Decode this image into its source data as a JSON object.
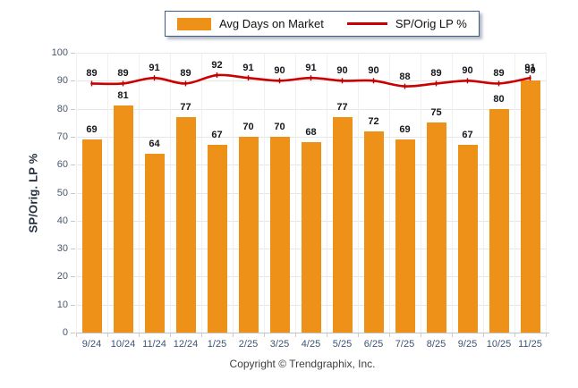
{
  "legend": {
    "bar_label": "Avg Days on Market",
    "line_label": "SP/Orig LP %"
  },
  "chart_data": {
    "type": "bar",
    "title": "",
    "categories": [
      "9/24",
      "10/24",
      "11/24",
      "12/24",
      "1/25",
      "2/25",
      "3/25",
      "4/25",
      "5/25",
      "6/25",
      "7/25",
      "8/25",
      "9/25",
      "10/25",
      "11/25"
    ],
    "series": [
      {
        "name": "Avg Days on Market",
        "type": "bar",
        "color": "#EE9118",
        "values": [
          69,
          81,
          64,
          77,
          67,
          70,
          70,
          68,
          77,
          72,
          69,
          75,
          67,
          80,
          90
        ]
      },
      {
        "name": "SP/Orig LP %",
        "type": "line",
        "color": "#CC0000",
        "values": [
          89,
          89,
          91,
          89,
          92,
          91,
          90,
          91,
          90,
          90,
          88,
          89,
          90,
          89,
          91
        ]
      }
    ],
    "xlabel": "",
    "ylabel": "SP/Orig. LP %",
    "ylim": [
      0,
      100
    ],
    "ytick_step": 10,
    "grid": true,
    "legend_position": "top"
  },
  "footer": {
    "copyright": "Copyright © Trendgraphix, Inc."
  }
}
